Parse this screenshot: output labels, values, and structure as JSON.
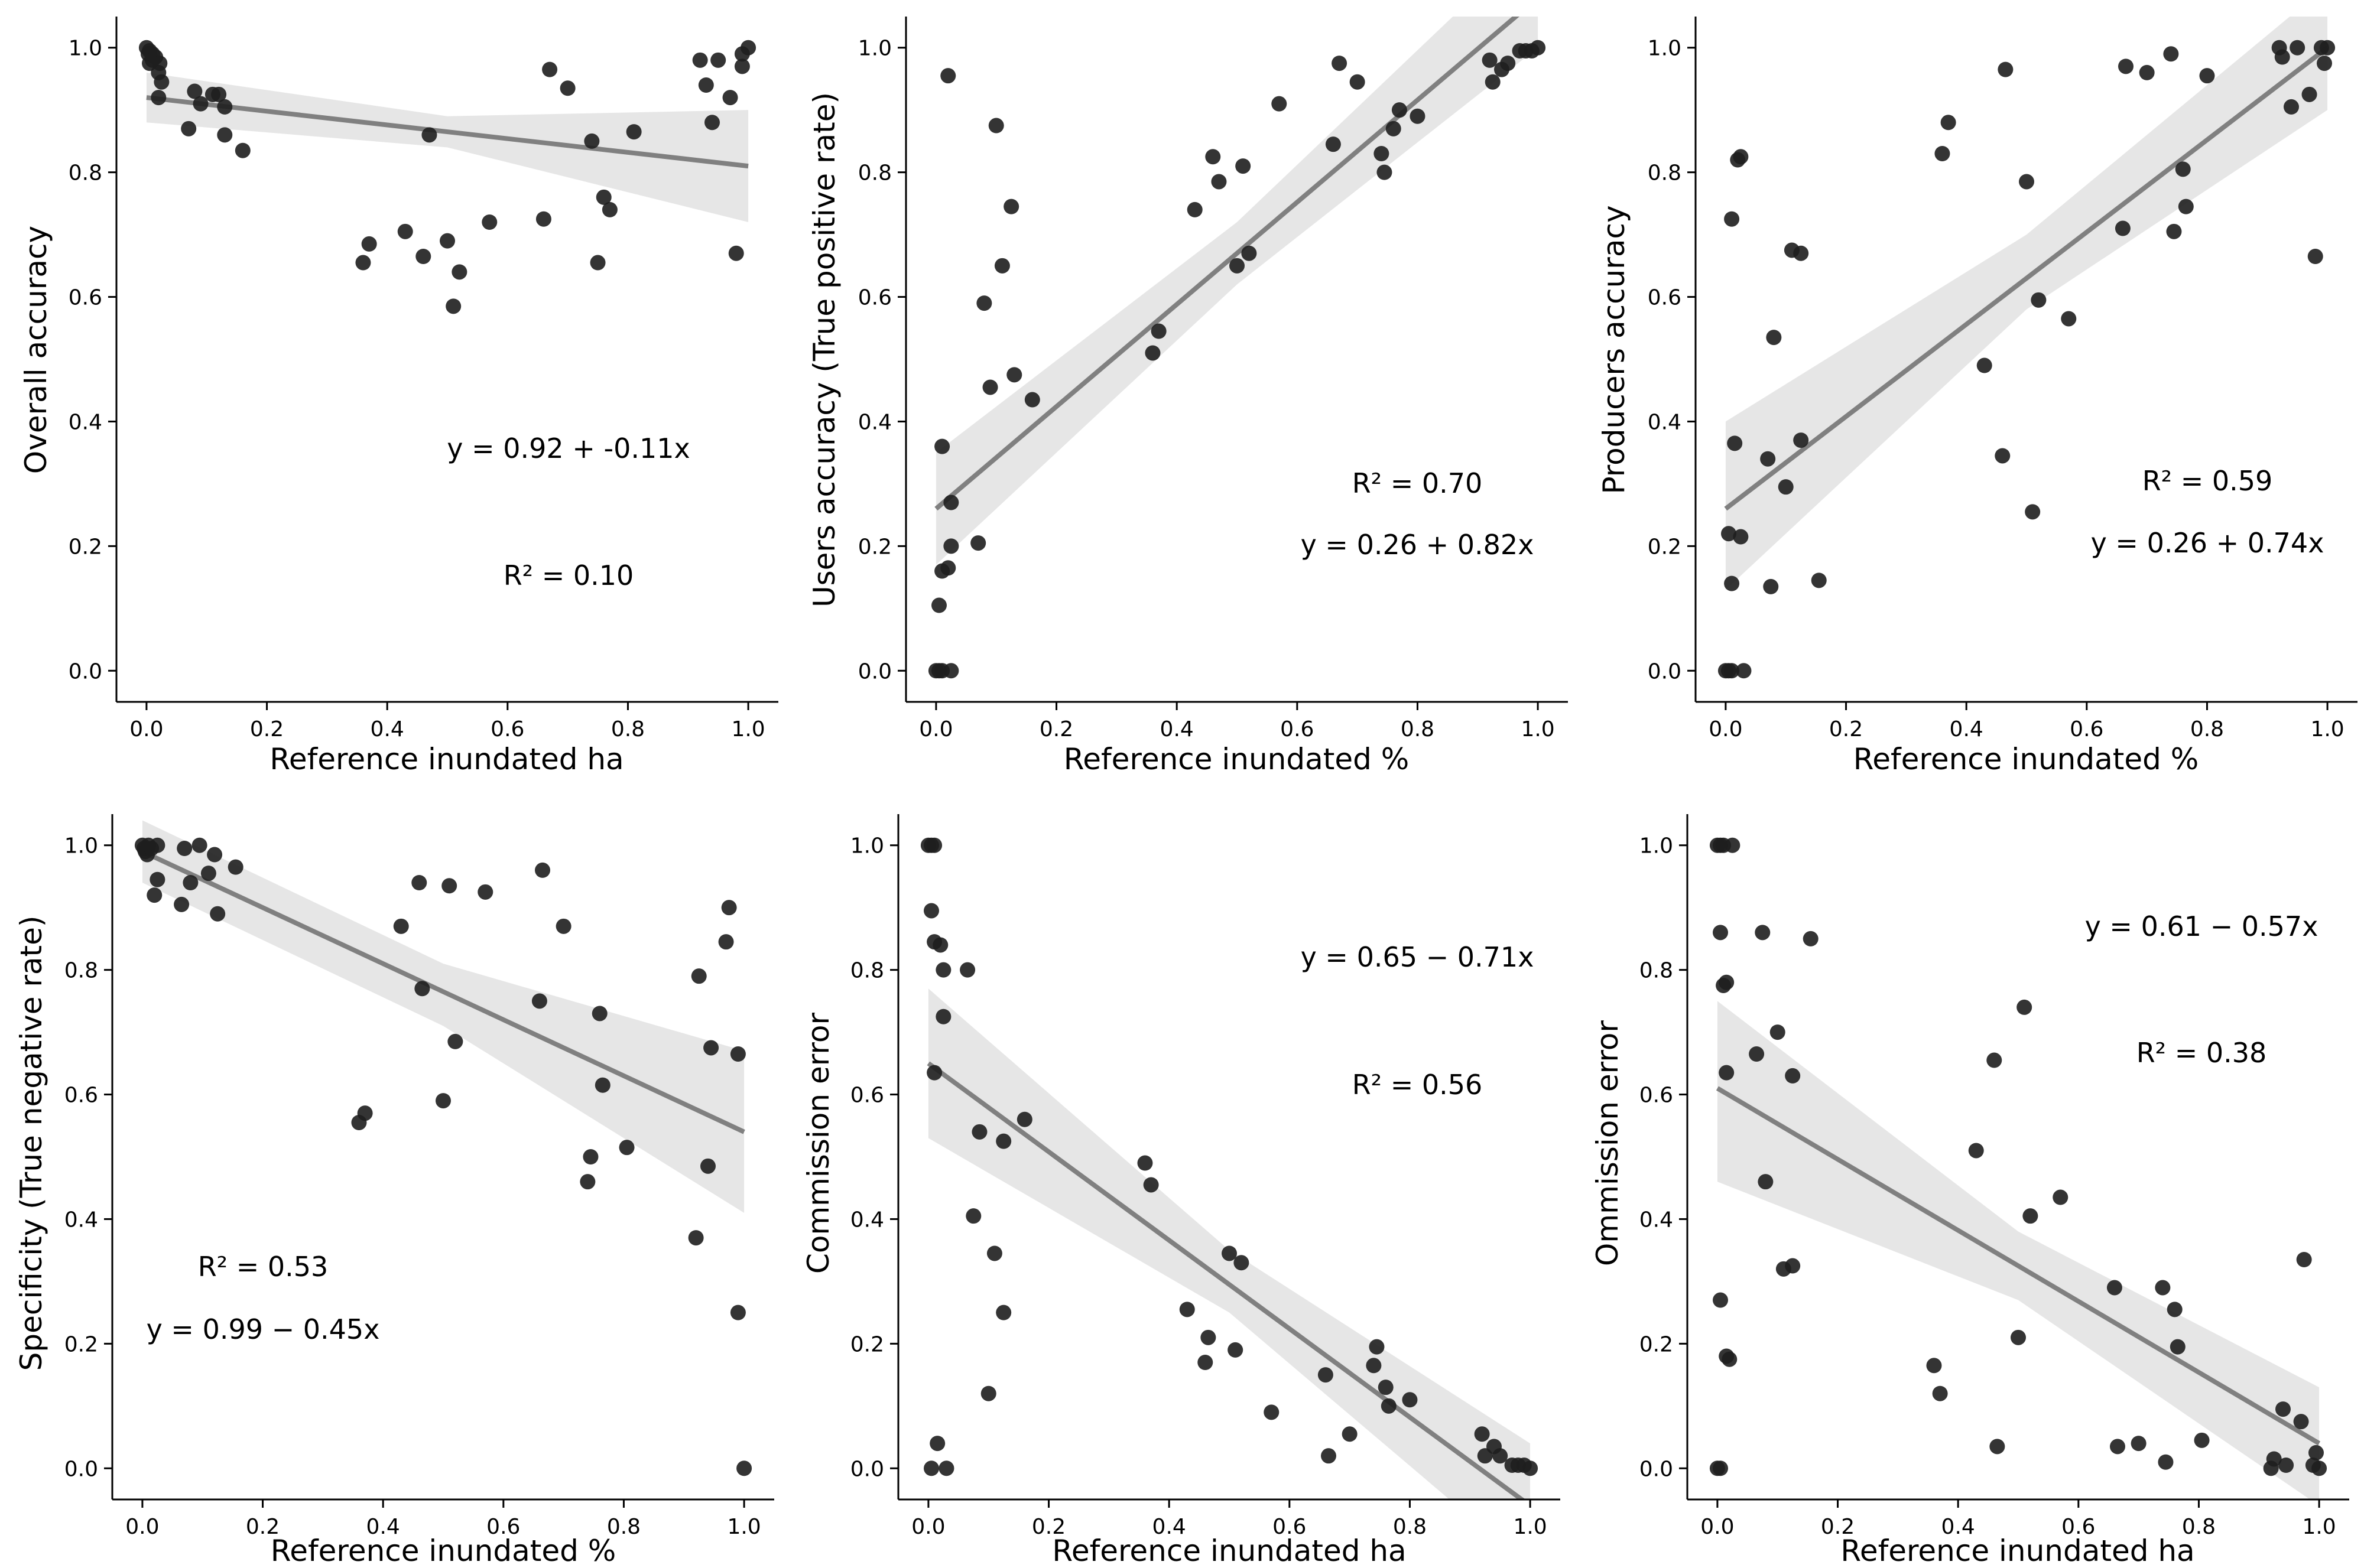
{
  "colors": {
    "point": "#1e1e1e",
    "fit_line": "#808080",
    "band": "#e6e6e6",
    "axis": "#000000"
  },
  "chart_data": [
    {
      "type": "scatter",
      "xlabel": "Reference inundated ha",
      "ylabel": "Overall accuracy",
      "xlim": [
        -0.05,
        1.05
      ],
      "ylim": [
        -0.05,
        1.05
      ],
      "xticks": [
        "0.0",
        "0.2",
        "0.4",
        "0.6",
        "0.8",
        "1.0"
      ],
      "yticks": [
        "0.0",
        "0.2",
        "0.4",
        "0.6",
        "0.8",
        "1.0"
      ],
      "annotations": [
        "y = 0.92 + -0.11x",
        "R² = 0.10"
      ],
      "fit": {
        "intercept": 0.92,
        "slope": -0.11,
        "band": [
          [
            0,
            0.88,
            0.96
          ],
          [
            0.5,
            0.84,
            0.89
          ],
          [
            1,
            0.72,
            0.9
          ]
        ]
      },
      "points": [
        [
          0.0,
          1.0
        ],
        [
          0.003,
          0.99
        ],
        [
          0.005,
          0.995
        ],
        [
          0.01,
          0.98
        ],
        [
          0.005,
          0.975
        ],
        [
          0.01,
          0.99
        ],
        [
          0.015,
          0.985
        ],
        [
          0.02,
          0.96
        ],
        [
          0.022,
          0.975
        ],
        [
          0.02,
          0.92
        ],
        [
          0.025,
          0.945
        ],
        [
          0.07,
          0.87
        ],
        [
          0.08,
          0.93
        ],
        [
          0.09,
          0.91
        ],
        [
          0.11,
          0.925
        ],
        [
          0.12,
          0.925
        ],
        [
          0.13,
          0.905
        ],
        [
          0.13,
          0.86
        ],
        [
          0.16,
          0.835
        ],
        [
          0.36,
          0.655
        ],
        [
          0.37,
          0.685
        ],
        [
          0.43,
          0.705
        ],
        [
          0.46,
          0.665
        ],
        [
          0.47,
          0.86
        ],
        [
          0.5,
          0.69
        ],
        [
          0.51,
          0.585
        ],
        [
          0.52,
          0.64
        ],
        [
          0.57,
          0.72
        ],
        [
          0.66,
          0.725
        ],
        [
          0.67,
          0.965
        ],
        [
          0.7,
          0.935
        ],
        [
          0.74,
          0.85
        ],
        [
          0.75,
          0.655
        ],
        [
          0.76,
          0.76
        ],
        [
          0.77,
          0.74
        ],
        [
          0.81,
          0.865
        ],
        [
          0.92,
          0.98
        ],
        [
          0.93,
          0.94
        ],
        [
          0.94,
          0.88
        ],
        [
          0.95,
          0.98
        ],
        [
          0.97,
          0.92
        ],
        [
          0.98,
          0.67
        ],
        [
          0.99,
          0.99
        ],
        [
          0.99,
          0.97
        ],
        [
          1.0,
          1.0
        ]
      ]
    },
    {
      "type": "scatter",
      "xlabel": "Reference inundated %",
      "ylabel": "Users accuracy (True positive rate)",
      "xlim": [
        -0.05,
        1.05
      ],
      "ylim": [
        -0.05,
        1.05
      ],
      "xticks": [
        "0.0",
        "0.2",
        "0.4",
        "0.6",
        "0.8",
        "1.0"
      ],
      "yticks": [
        "0.0",
        "0.2",
        "0.4",
        "0.6",
        "0.8",
        "1.0"
      ],
      "annotations": [
        "R² = 0.70",
        "y = 0.26 + 0.82x"
      ],
      "fit": {
        "intercept": 0.26,
        "slope": 0.82,
        "band": [
          [
            0,
            0.17,
            0.35
          ],
          [
            0.5,
            0.62,
            0.72
          ],
          [
            1,
            1.0,
            1.18
          ]
        ]
      },
      "points": [
        [
          0.0,
          0.0
        ],
        [
          0.005,
          0.0
        ],
        [
          0.01,
          0.0
        ],
        [
          0.025,
          0.0
        ],
        [
          0.005,
          0.105
        ],
        [
          0.01,
          0.16
        ],
        [
          0.01,
          0.36
        ],
        [
          0.02,
          0.165
        ],
        [
          0.025,
          0.2
        ],
        [
          0.025,
          0.27
        ],
        [
          0.02,
          0.955
        ],
        [
          0.07,
          0.205
        ],
        [
          0.08,
          0.59
        ],
        [
          0.09,
          0.455
        ],
        [
          0.1,
          0.875
        ],
        [
          0.11,
          0.65
        ],
        [
          0.125,
          0.745
        ],
        [
          0.13,
          0.475
        ],
        [
          0.16,
          0.435
        ],
        [
          0.36,
          0.51
        ],
        [
          0.37,
          0.545
        ],
        [
          0.43,
          0.74
        ],
        [
          0.46,
          0.825
        ],
        [
          0.47,
          0.785
        ],
        [
          0.5,
          0.65
        ],
        [
          0.51,
          0.81
        ],
        [
          0.52,
          0.67
        ],
        [
          0.57,
          0.91
        ],
        [
          0.66,
          0.845
        ],
        [
          0.67,
          0.975
        ],
        [
          0.7,
          0.945
        ],
        [
          0.74,
          0.83
        ],
        [
          0.745,
          0.8
        ],
        [
          0.76,
          0.87
        ],
        [
          0.77,
          0.9
        ],
        [
          0.8,
          0.89
        ],
        [
          0.92,
          0.98
        ],
        [
          0.925,
          0.945
        ],
        [
          0.94,
          0.965
        ],
        [
          0.95,
          0.975
        ],
        [
          0.97,
          0.995
        ],
        [
          0.98,
          0.995
        ],
        [
          0.99,
          0.995
        ],
        [
          1.0,
          1.0
        ]
      ]
    },
    {
      "type": "scatter",
      "xlabel": "Reference inundated %",
      "ylabel": "Producers accuracy",
      "xlim": [
        -0.05,
        1.05
      ],
      "ylim": [
        -0.05,
        1.05
      ],
      "xticks": [
        "0.0",
        "0.2",
        "0.4",
        "0.6",
        "0.8",
        "1.0"
      ],
      "yticks": [
        "0.0",
        "0.2",
        "0.4",
        "0.6",
        "0.8",
        "1.0"
      ],
      "annotations": [
        "R² = 0.59",
        "y = 0.26 + 0.74x"
      ],
      "fit": {
        "intercept": 0.26,
        "slope": 0.74,
        "band": [
          [
            0,
            0.13,
            0.4
          ],
          [
            0.5,
            0.58,
            0.7
          ],
          [
            1,
            0.9,
            1.1
          ]
        ]
      },
      "points": [
        [
          0.0,
          0.0
        ],
        [
          0.005,
          0.0
        ],
        [
          0.01,
          0.0
        ],
        [
          0.03,
          0.0
        ],
        [
          0.005,
          0.22
        ],
        [
          0.01,
          0.14
        ],
        [
          0.01,
          0.725
        ],
        [
          0.015,
          0.365
        ],
        [
          0.02,
          0.82
        ],
        [
          0.025,
          0.825
        ],
        [
          0.025,
          0.215
        ],
        [
          0.07,
          0.34
        ],
        [
          0.075,
          0.135
        ],
        [
          0.08,
          0.535
        ],
        [
          0.1,
          0.295
        ],
        [
          0.11,
          0.675
        ],
        [
          0.125,
          0.67
        ],
        [
          0.125,
          0.37
        ],
        [
          0.155,
          0.145
        ],
        [
          0.36,
          0.83
        ],
        [
          0.37,
          0.88
        ],
        [
          0.43,
          0.49
        ],
        [
          0.46,
          0.345
        ],
        [
          0.465,
          0.965
        ],
        [
          0.5,
          0.785
        ],
        [
          0.51,
          0.255
        ],
        [
          0.52,
          0.595
        ],
        [
          0.57,
          0.565
        ],
        [
          0.66,
          0.71
        ],
        [
          0.665,
          0.97
        ],
        [
          0.7,
          0.96
        ],
        [
          0.74,
          0.99
        ],
        [
          0.745,
          0.705
        ],
        [
          0.76,
          0.805
        ],
        [
          0.765,
          0.745
        ],
        [
          0.8,
          0.955
        ],
        [
          0.92,
          1.0
        ],
        [
          0.925,
          0.985
        ],
        [
          0.94,
          0.905
        ],
        [
          0.95,
          1.0
        ],
        [
          0.97,
          0.925
        ],
        [
          0.98,
          0.665
        ],
        [
          0.99,
          1.0
        ],
        [
          0.995,
          0.975
        ],
        [
          1.0,
          1.0
        ]
      ]
    },
    {
      "type": "scatter",
      "xlabel": "Reference inundated %",
      "ylabel": "Specificity (True negative rate)",
      "xlim": [
        -0.05,
        1.05
      ],
      "ylim": [
        -0.05,
        1.05
      ],
      "xticks": [
        "0.0",
        "0.2",
        "0.4",
        "0.6",
        "0.8",
        "1.0"
      ],
      "yticks": [
        "0.0",
        "0.2",
        "0.4",
        "0.6",
        "0.8",
        "1.0"
      ],
      "annotations": [
        "R² = 0.53",
        "y = 0.99 − 0.45x"
      ],
      "fit": {
        "intercept": 0.99,
        "slope": -0.45,
        "band": [
          [
            0,
            0.94,
            1.04
          ],
          [
            0.5,
            0.71,
            0.81
          ],
          [
            1,
            0.41,
            0.67
          ]
        ]
      },
      "points": [
        [
          0.0,
          1.0
        ],
        [
          0.003,
          0.995
        ],
        [
          0.005,
          0.99
        ],
        [
          0.008,
          0.985
        ],
        [
          0.01,
          1.0
        ],
        [
          0.015,
          0.995
        ],
        [
          0.02,
          0.92
        ],
        [
          0.025,
          0.945
        ],
        [
          0.025,
          1.0
        ],
        [
          0.065,
          0.905
        ],
        [
          0.07,
          0.995
        ],
        [
          0.08,
          0.94
        ],
        [
          0.095,
          1.0
        ],
        [
          0.11,
          0.955
        ],
        [
          0.12,
          0.985
        ],
        [
          0.125,
          0.89
        ],
        [
          0.155,
          0.965
        ],
        [
          0.36,
          0.555
        ],
        [
          0.37,
          0.57
        ],
        [
          0.43,
          0.87
        ],
        [
          0.46,
          0.94
        ],
        [
          0.465,
          0.77
        ],
        [
          0.5,
          0.59
        ],
        [
          0.51,
          0.935
        ],
        [
          0.52,
          0.685
        ],
        [
          0.57,
          0.925
        ],
        [
          0.66,
          0.75
        ],
        [
          0.665,
          0.96
        ],
        [
          0.7,
          0.87
        ],
        [
          0.74,
          0.46
        ],
        [
          0.745,
          0.5
        ],
        [
          0.76,
          0.73
        ],
        [
          0.765,
          0.615
        ],
        [
          0.805,
          0.515
        ],
        [
          0.92,
          0.37
        ],
        [
          0.925,
          0.79
        ],
        [
          0.94,
          0.485
        ],
        [
          0.945,
          0.675
        ],
        [
          0.97,
          0.845
        ],
        [
          0.975,
          0.9
        ],
        [
          0.99,
          0.25
        ],
        [
          0.99,
          0.665
        ],
        [
          1.0,
          0.0
        ]
      ]
    },
    {
      "type": "scatter",
      "xlabel": "Reference inundated ha",
      "ylabel": "Commission error",
      "xlim": [
        -0.05,
        1.05
      ],
      "ylim": [
        -0.05,
        1.05
      ],
      "xticks": [
        "0.0",
        "0.2",
        "0.4",
        "0.6",
        "0.8",
        "1.0"
      ],
      "yticks": [
        "0.0",
        "0.2",
        "0.4",
        "0.6",
        "0.8",
        "1.0"
      ],
      "annotations": [
        "y = 0.65 − 0.71x",
        "R² = 0.56"
      ],
      "fit": {
        "intercept": 0.65,
        "slope": -0.71,
        "band": [
          [
            0,
            0.53,
            0.77
          ],
          [
            0.5,
            0.25,
            0.35
          ],
          [
            1,
            -0.16,
            0.04
          ]
        ]
      },
      "points": [
        [
          0.0,
          1.0
        ],
        [
          0.005,
          1.0
        ],
        [
          0.01,
          1.0
        ],
        [
          0.005,
          0.895
        ],
        [
          0.01,
          0.845
        ],
        [
          0.01,
          0.635
        ],
        [
          0.015,
          0.04
        ],
        [
          0.02,
          0.84
        ],
        [
          0.025,
          0.8
        ],
        [
          0.025,
          0.725
        ],
        [
          0.005,
          0.0
        ],
        [
          0.03,
          0.0
        ],
        [
          0.065,
          0.8
        ],
        [
          0.075,
          0.405
        ],
        [
          0.085,
          0.54
        ],
        [
          0.1,
          0.12
        ],
        [
          0.11,
          0.345
        ],
        [
          0.125,
          0.25
        ],
        [
          0.125,
          0.525
        ],
        [
          0.16,
          0.56
        ],
        [
          0.36,
          0.49
        ],
        [
          0.37,
          0.455
        ],
        [
          0.43,
          0.255
        ],
        [
          0.46,
          0.17
        ],
        [
          0.465,
          0.21
        ],
        [
          0.5,
          0.345
        ],
        [
          0.51,
          0.19
        ],
        [
          0.52,
          0.33
        ],
        [
          0.57,
          0.09
        ],
        [
          0.66,
          0.15
        ],
        [
          0.665,
          0.02
        ],
        [
          0.7,
          0.055
        ],
        [
          0.74,
          0.165
        ],
        [
          0.745,
          0.195
        ],
        [
          0.76,
          0.13
        ],
        [
          0.765,
          0.1
        ],
        [
          0.8,
          0.11
        ],
        [
          0.92,
          0.055
        ],
        [
          0.925,
          0.02
        ],
        [
          0.94,
          0.035
        ],
        [
          0.95,
          0.02
        ],
        [
          0.97,
          0.005
        ],
        [
          0.98,
          0.005
        ],
        [
          0.99,
          0.005
        ],
        [
          1.0,
          0.0
        ]
      ]
    },
    {
      "type": "scatter",
      "xlabel": "Reference inundated ha",
      "ylabel": "Ommission error",
      "xlim": [
        -0.05,
        1.05
      ],
      "ylim": [
        -0.05,
        1.05
      ],
      "xticks": [
        "0.0",
        "0.2",
        "0.4",
        "0.6",
        "0.8",
        "1.0"
      ],
      "yticks": [
        "0.0",
        "0.2",
        "0.4",
        "0.6",
        "0.8",
        "1.0"
      ],
      "annotations": [
        "y = 0.61 − 0.57x",
        "R² = 0.38"
      ],
      "fit": {
        "intercept": 0.61,
        "slope": -0.57,
        "band": [
          [
            0,
            0.46,
            0.75
          ],
          [
            0.5,
            0.27,
            0.38
          ],
          [
            1,
            -0.06,
            0.13
          ]
        ]
      },
      "points": [
        [
          0.0,
          1.0
        ],
        [
          0.005,
          1.0
        ],
        [
          0.01,
          1.0
        ],
        [
          0.025,
          1.0
        ],
        [
          0.005,
          0.86
        ],
        [
          0.01,
          0.775
        ],
        [
          0.015,
          0.78
        ],
        [
          0.015,
          0.635
        ],
        [
          0.005,
          0.27
        ],
        [
          0.015,
          0.18
        ],
        [
          0.02,
          0.175
        ],
        [
          0.0,
          0.0
        ],
        [
          0.005,
          0.0
        ],
        [
          0.065,
          0.665
        ],
        [
          0.075,
          0.86
        ],
        [
          0.08,
          0.46
        ],
        [
          0.1,
          0.7
        ],
        [
          0.11,
          0.32
        ],
        [
          0.125,
          0.325
        ],
        [
          0.125,
          0.63
        ],
        [
          0.155,
          0.85
        ],
        [
          0.36,
          0.165
        ],
        [
          0.37,
          0.12
        ],
        [
          0.43,
          0.51
        ],
        [
          0.46,
          0.655
        ],
        [
          0.465,
          0.035
        ],
        [
          0.5,
          0.21
        ],
        [
          0.51,
          0.74
        ],
        [
          0.52,
          0.405
        ],
        [
          0.57,
          0.435
        ],
        [
          0.66,
          0.29
        ],
        [
          0.665,
          0.035
        ],
        [
          0.7,
          0.04
        ],
        [
          0.74,
          0.29
        ],
        [
          0.745,
          0.01
        ],
        [
          0.76,
          0.255
        ],
        [
          0.765,
          0.195
        ],
        [
          0.805,
          0.045
        ],
        [
          0.92,
          0.0
        ],
        [
          0.925,
          0.015
        ],
        [
          0.94,
          0.095
        ],
        [
          0.945,
          0.005
        ],
        [
          0.97,
          0.075
        ],
        [
          0.975,
          0.335
        ],
        [
          0.99,
          0.005
        ],
        [
          0.995,
          0.025
        ],
        [
          1.0,
          0.0
        ]
      ]
    }
  ]
}
